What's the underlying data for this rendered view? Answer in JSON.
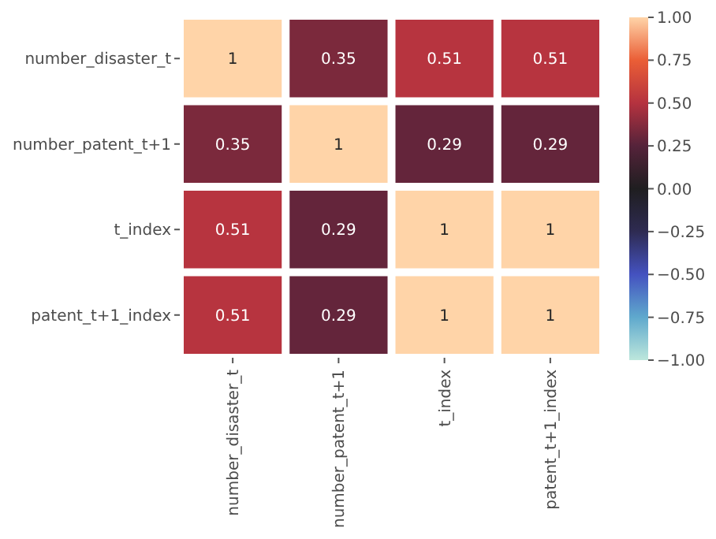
{
  "chart_data": {
    "type": "heatmap",
    "categories": [
      "number_disaster_t",
      "number_patent_t+1",
      "t_index",
      "patent_t+1_index"
    ],
    "y_categories": [
      "number_disaster_t",
      "number_patent_t+1",
      "t_index",
      "patent_t+1_index"
    ],
    "cells": [
      [
        1,
        0.35,
        0.51,
        0.51
      ],
      [
        0.35,
        1,
        0.29,
        0.29
      ],
      [
        0.51,
        0.29,
        1,
        1
      ],
      [
        0.51,
        0.29,
        1,
        1
      ]
    ],
    "data_labels": true,
    "clim": [
      -1,
      1
    ],
    "cticks": [
      {
        "value": 1,
        "label": "1.00"
      },
      {
        "value": 0.75,
        "label": "0.75"
      },
      {
        "value": 0.5,
        "label": "0.50"
      },
      {
        "value": 0.25,
        "label": "0.25"
      },
      {
        "value": 0,
        "label": "0.00"
      },
      {
        "value": -0.25,
        "label": "−0.25"
      },
      {
        "value": -0.5,
        "label": "−0.50"
      },
      {
        "value": -0.75,
        "label": "−0.75"
      },
      {
        "value": -1,
        "label": "−1.00"
      }
    ]
  }
}
